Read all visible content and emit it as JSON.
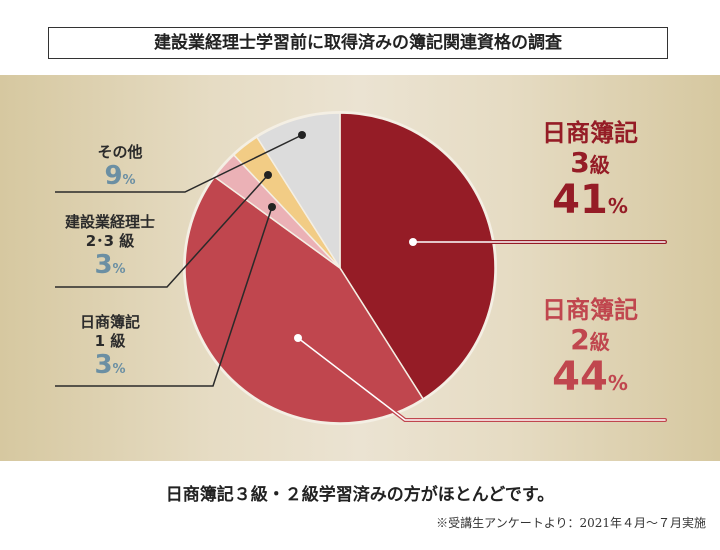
{
  "title": "建設業経理士学習前に取得済みの簿記関連資格の調査",
  "chart_data": {
    "type": "pie",
    "start": "top",
    "direction": "clockwise",
    "slices": [
      {
        "label": "日商簿記3級",
        "value": 41,
        "color": "#951c26"
      },
      {
        "label": "日商簿記2級",
        "value": 44,
        "color": "#c0464e"
      },
      {
        "label": "日商簿記1級",
        "value": 3,
        "color": "#ebb1b6"
      },
      {
        "label": "建設業経理士2・3級",
        "value": 3,
        "color": "#f2cc85"
      },
      {
        "label": "その他",
        "value": 9,
        "color": "#dcdcdc"
      }
    ]
  },
  "labels": {
    "grade3": {
      "line1": "日商簿記",
      "line2": "3",
      "kyu": "級",
      "pct": "41",
      "unit": "%"
    },
    "grade2": {
      "line1": "日商簿記",
      "line2": "2",
      "kyu": "級",
      "pct": "44",
      "unit": "%"
    },
    "other": {
      "line1": "その他",
      "pct": "9",
      "unit": "%"
    },
    "kensetsu": {
      "line1": "建設業経理士",
      "line2": "2･3 級",
      "pct": "3",
      "unit": "%"
    },
    "grade1": {
      "line1": "日商簿記",
      "line2": "1 級",
      "pct": "3",
      "unit": "%"
    }
  },
  "summary": "日商簿記３級・２級学習済みの方がほとんどです。",
  "note": "※受講生アンケートより：2021年４月～７月実施"
}
